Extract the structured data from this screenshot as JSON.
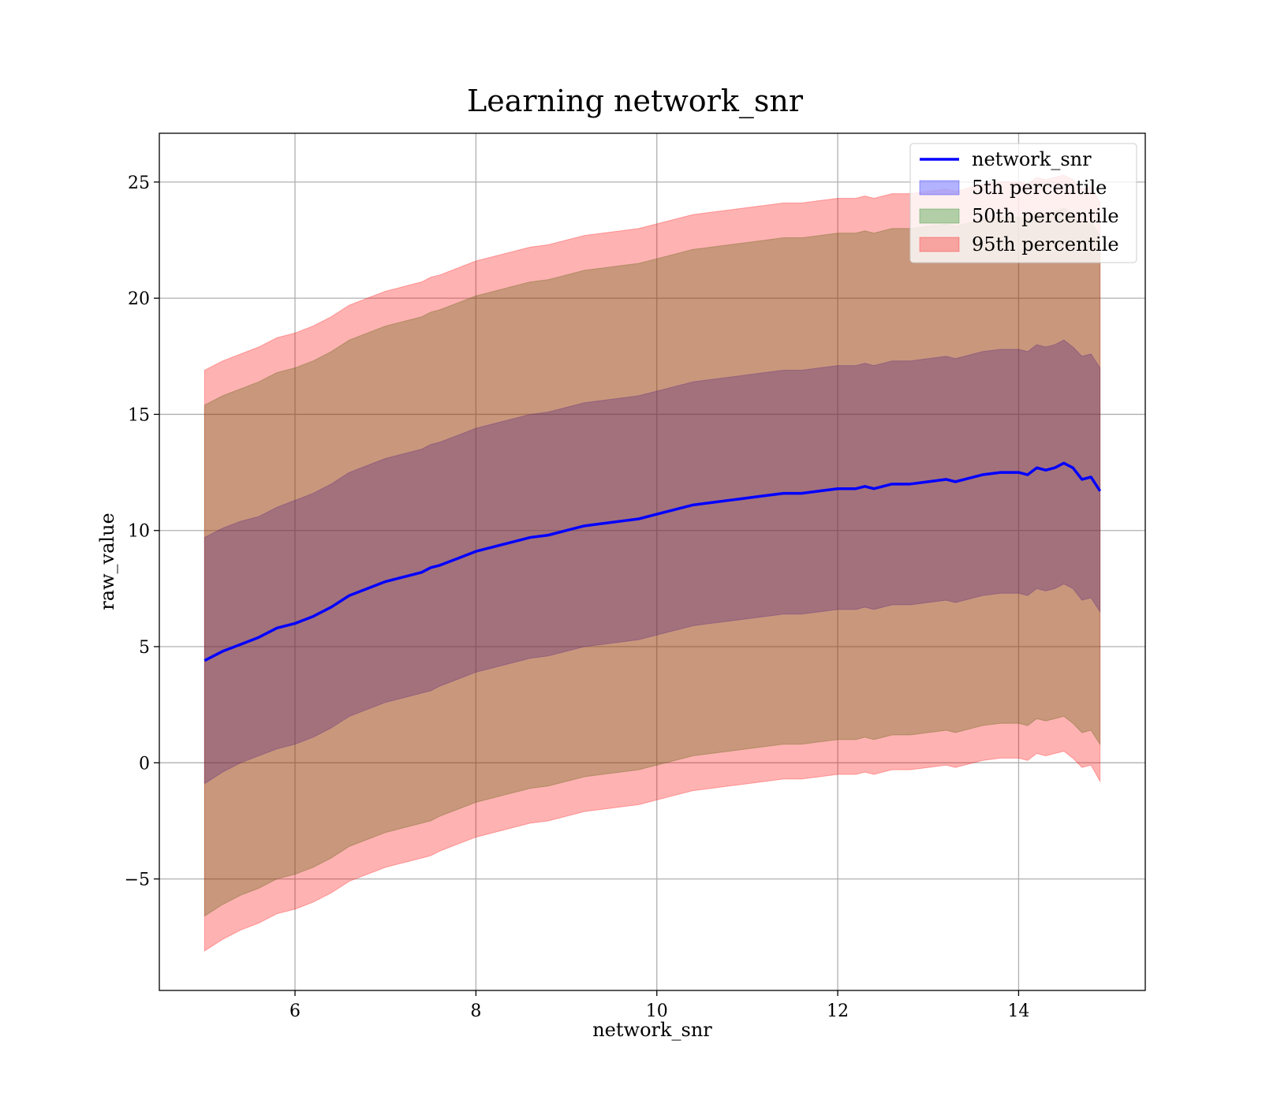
{
  "chart_data": {
    "type": "area",
    "title": "Learning network_snr",
    "xlabel": "network_snr",
    "ylabel": "raw_value",
    "xlim": [
      4.5,
      15.4
    ],
    "ylim": [
      -9.8,
      27.1
    ],
    "xticks": [
      6,
      8,
      10,
      12,
      14
    ],
    "yticks": [
      -5,
      0,
      5,
      10,
      15,
      20,
      25
    ],
    "xtick_labels": [
      "6",
      "8",
      "10",
      "12",
      "14"
    ],
    "ytick_labels": [
      "−5",
      "0",
      "5",
      "10",
      "15",
      "20",
      "25"
    ],
    "grid": true,
    "legend_position": "top-right",
    "x": [
      5.0,
      5.2,
      5.4,
      5.6,
      5.8,
      6.0,
      6.2,
      6.4,
      6.6,
      6.8,
      7.0,
      7.2,
      7.4,
      7.5,
      7.6,
      7.8,
      8.0,
      8.2,
      8.4,
      8.6,
      8.8,
      9.0,
      9.2,
      9.4,
      9.6,
      9.8,
      10.0,
      10.2,
      10.4,
      10.6,
      10.8,
      11.0,
      11.2,
      11.4,
      11.6,
      11.8,
      12.0,
      12.2,
      12.3,
      12.4,
      12.6,
      12.8,
      13.0,
      13.2,
      13.3,
      13.4,
      13.6,
      13.8,
      14.0,
      14.1,
      14.2,
      14.3,
      14.4,
      14.5,
      14.6,
      14.7,
      14.8,
      14.9
    ],
    "series": [
      {
        "name": "network_snr",
        "kind": "line",
        "color": "#0000ff",
        "values": [
          4.4,
          4.8,
          5.1,
          5.4,
          5.8,
          6.0,
          6.3,
          6.7,
          7.2,
          7.5,
          7.8,
          8.0,
          8.2,
          8.4,
          8.5,
          8.8,
          9.1,
          9.3,
          9.5,
          9.7,
          9.8,
          10.0,
          10.2,
          10.3,
          10.4,
          10.5,
          10.7,
          10.9,
          11.1,
          11.2,
          11.3,
          11.4,
          11.5,
          11.6,
          11.6,
          11.7,
          11.8,
          11.8,
          11.9,
          11.8,
          12.0,
          12.0,
          12.1,
          12.2,
          12.1,
          12.2,
          12.4,
          12.5,
          12.5,
          12.4,
          12.7,
          12.6,
          12.7,
          12.9,
          12.7,
          12.2,
          12.3,
          11.7
        ]
      },
      {
        "name": "5th percentile",
        "kind": "band",
        "color": "#0000ff",
        "lower": [
          -0.9,
          -0.4,
          0.0,
          0.3,
          0.6,
          0.8,
          1.1,
          1.5,
          2.0,
          2.3,
          2.6,
          2.8,
          3.0,
          3.1,
          3.3,
          3.6,
          3.9,
          4.1,
          4.3,
          4.5,
          4.6,
          4.8,
          5.0,
          5.1,
          5.2,
          5.3,
          5.5,
          5.7,
          5.9,
          6.0,
          6.1,
          6.2,
          6.3,
          6.4,
          6.4,
          6.5,
          6.6,
          6.6,
          6.7,
          6.6,
          6.8,
          6.8,
          6.9,
          7.0,
          6.9,
          7.0,
          7.2,
          7.3,
          7.3,
          7.2,
          7.5,
          7.4,
          7.5,
          7.7,
          7.5,
          7.0,
          7.1,
          6.5
        ],
        "upper": [
          9.7,
          10.1,
          10.4,
          10.6,
          11.0,
          11.3,
          11.6,
          12.0,
          12.5,
          12.8,
          13.1,
          13.3,
          13.5,
          13.7,
          13.8,
          14.1,
          14.4,
          14.6,
          14.8,
          15.0,
          15.1,
          15.3,
          15.5,
          15.6,
          15.7,
          15.8,
          16.0,
          16.2,
          16.4,
          16.5,
          16.6,
          16.7,
          16.8,
          16.9,
          16.9,
          17.0,
          17.1,
          17.1,
          17.2,
          17.1,
          17.3,
          17.3,
          17.4,
          17.5,
          17.4,
          17.5,
          17.7,
          17.8,
          17.8,
          17.7,
          18.0,
          17.9,
          18.0,
          18.2,
          17.9,
          17.5,
          17.6,
          17.0
        ]
      },
      {
        "name": "50th percentile",
        "kind": "band",
        "color": "#008000",
        "lower": [
          -6.6,
          -6.1,
          -5.7,
          -5.4,
          -5.0,
          -4.8,
          -4.5,
          -4.1,
          -3.6,
          -3.3,
          -3.0,
          -2.8,
          -2.6,
          -2.5,
          -2.3,
          -2.0,
          -1.7,
          -1.5,
          -1.3,
          -1.1,
          -1.0,
          -0.8,
          -0.6,
          -0.5,
          -0.4,
          -0.3,
          -0.1,
          0.1,
          0.3,
          0.4,
          0.5,
          0.6,
          0.7,
          0.8,
          0.8,
          0.9,
          1.0,
          1.0,
          1.1,
          1.0,
          1.2,
          1.2,
          1.3,
          1.4,
          1.3,
          1.4,
          1.6,
          1.7,
          1.7,
          1.6,
          1.9,
          1.8,
          1.9,
          2.0,
          1.7,
          1.3,
          1.4,
          0.8
        ],
        "upper": [
          15.4,
          15.8,
          16.1,
          16.4,
          16.8,
          17.0,
          17.3,
          17.7,
          18.2,
          18.5,
          18.8,
          19.0,
          19.2,
          19.4,
          19.5,
          19.8,
          20.1,
          20.3,
          20.5,
          20.7,
          20.8,
          21.0,
          21.2,
          21.3,
          21.4,
          21.5,
          21.7,
          21.9,
          22.1,
          22.2,
          22.3,
          22.4,
          22.5,
          22.6,
          22.6,
          22.7,
          22.8,
          22.8,
          22.9,
          22.8,
          23.0,
          23.0,
          23.1,
          23.2,
          23.1,
          23.2,
          23.4,
          23.5,
          23.5,
          23.4,
          23.7,
          23.6,
          23.7,
          23.9,
          23.6,
          23.2,
          23.3,
          22.7
        ]
      },
      {
        "name": "95th percentile",
        "kind": "band",
        "color": "#ff0000",
        "lower": [
          -8.1,
          -7.6,
          -7.2,
          -6.9,
          -6.5,
          -6.3,
          -6.0,
          -5.6,
          -5.1,
          -4.8,
          -4.5,
          -4.3,
          -4.1,
          -4.0,
          -3.8,
          -3.5,
          -3.2,
          -3.0,
          -2.8,
          -2.6,
          -2.5,
          -2.3,
          -2.1,
          -2.0,
          -1.9,
          -1.8,
          -1.6,
          -1.4,
          -1.2,
          -1.1,
          -1.0,
          -0.9,
          -0.8,
          -0.7,
          -0.7,
          -0.6,
          -0.5,
          -0.5,
          -0.4,
          -0.5,
          -0.3,
          -0.3,
          -0.2,
          -0.1,
          -0.2,
          -0.1,
          0.1,
          0.2,
          0.2,
          0.1,
          0.4,
          0.3,
          0.4,
          0.5,
          0.2,
          -0.2,
          -0.1,
          -0.8
        ],
        "upper": [
          16.9,
          17.3,
          17.6,
          17.9,
          18.3,
          18.5,
          18.8,
          19.2,
          19.7,
          20.0,
          20.3,
          20.5,
          20.7,
          20.9,
          21.0,
          21.3,
          21.6,
          21.8,
          22.0,
          22.2,
          22.3,
          22.5,
          22.7,
          22.8,
          22.9,
          23.0,
          23.2,
          23.4,
          23.6,
          23.7,
          23.8,
          23.9,
          24.0,
          24.1,
          24.1,
          24.2,
          24.3,
          24.3,
          24.4,
          24.3,
          24.5,
          24.5,
          24.6,
          24.7,
          24.6,
          24.7,
          24.9,
          25.0,
          25.0,
          24.9,
          25.2,
          25.1,
          25.2,
          25.3,
          25.1,
          24.7,
          24.8,
          24.1
        ]
      }
    ],
    "legend": [
      {
        "label": "network_snr",
        "kind": "line",
        "color": "#0000ff"
      },
      {
        "label": "5th percentile",
        "kind": "patch",
        "color": "#0000ff"
      },
      {
        "label": "50th percentile",
        "kind": "patch",
        "color": "#008000"
      },
      {
        "label": "95th percentile",
        "kind": "patch",
        "color": "#ff0000"
      }
    ]
  }
}
